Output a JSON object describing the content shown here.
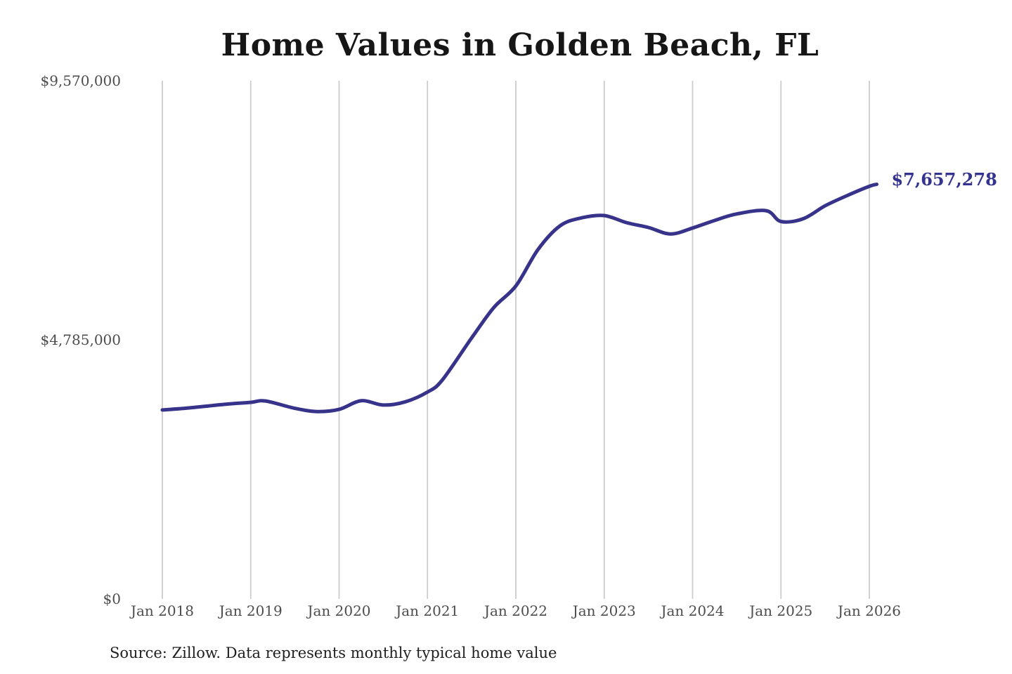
{
  "title": "Home Values in Golden Beach, FL",
  "source_note": "Source: Zillow. Data represents monthly typical home value",
  "colors": {
    "line": "#37338a",
    "end_label": "#343390",
    "grid": "#cccccc",
    "title_text": "#161616",
    "axis_text": "#4d4d4d",
    "background": "#ffffff"
  },
  "chart_data": {
    "type": "line",
    "title": "Home Values in Golden Beach, FL",
    "xlabel": "",
    "ylabel": "",
    "grid": "vertical-only",
    "legend": "none",
    "x_unit": "months since Jan 2018",
    "x_tick_labels": [
      "Jan 2018",
      "Jan 2019",
      "Jan 2020",
      "Jan 2021",
      "Jan 2022",
      "Jan 2023",
      "Jan 2024",
      "Jan 2025",
      "Jan 2026"
    ],
    "y_ticks": [
      {
        "value": 0,
        "label": "$0"
      },
      {
        "value": 4785000,
        "label": "$4,785,000"
      },
      {
        "value": 9570000,
        "label": "$9,570,000"
      }
    ],
    "ylim": [
      0,
      9570000
    ],
    "final_value": 7657278,
    "final_value_label": "$7,657,278",
    "series": [
      {
        "name": "Monthly typical home value",
        "points": [
          [
            0,
            3490000
          ],
          [
            3,
            3520000
          ],
          [
            6,
            3560000
          ],
          [
            9,
            3600000
          ],
          [
            12,
            3630000
          ],
          [
            14,
            3655000
          ],
          [
            18,
            3520000
          ],
          [
            21,
            3460000
          ],
          [
            24,
            3500000
          ],
          [
            27,
            3660000
          ],
          [
            30,
            3580000
          ],
          [
            33,
            3640000
          ],
          [
            36,
            3820000
          ],
          [
            38,
            4040000
          ],
          [
            42,
            4820000
          ],
          [
            45,
            5380000
          ],
          [
            48,
            5780000
          ],
          [
            51,
            6450000
          ],
          [
            54,
            6890000
          ],
          [
            57,
            7040000
          ],
          [
            60,
            7080000
          ],
          [
            63,
            6950000
          ],
          [
            66,
            6860000
          ],
          [
            69,
            6740000
          ],
          [
            72,
            6850000
          ],
          [
            75,
            6990000
          ],
          [
            78,
            7110000
          ],
          [
            82,
            7170000
          ],
          [
            84,
            6970000
          ],
          [
            87,
            7020000
          ],
          [
            90,
            7260000
          ],
          [
            93,
            7450000
          ],
          [
            96,
            7620000
          ],
          [
            97,
            7657278
          ]
        ]
      }
    ]
  }
}
